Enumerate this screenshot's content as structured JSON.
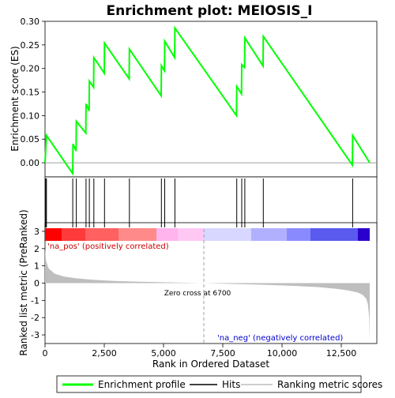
{
  "chart_data": {
    "type": "line",
    "title": "Enrichment plot: MEIOSIS_I",
    "es_panel": {
      "ylabel": "Enrichment score (ES)",
      "ylim": [
        -0.03,
        0.3
      ],
      "yticks": [
        0.0,
        0.05,
        0.1,
        0.15,
        0.2,
        0.25,
        0.3
      ],
      "ytick_labels": [
        "0.00",
        "0.05",
        "0.10",
        "0.15",
        "0.20",
        "0.25",
        "0.30"
      ],
      "series": [
        {
          "name": "Enrichment profile",
          "color": "#00ff00",
          "x": [
            0,
            60,
            1170,
            1180,
            1310,
            1320,
            1720,
            1730,
            1860,
            1870,
            2050,
            2060,
            2500,
            2510,
            3550,
            3560,
            4900,
            4910,
            5040,
            5050,
            5470,
            5480,
            8080,
            8090,
            8290,
            8300,
            8420,
            8430,
            9200,
            9210,
            12970,
            12980,
            13700
          ],
          "y": [
            0.0,
            0.058,
            -0.023,
            0.04,
            0.025,
            0.088,
            0.063,
            0.125,
            0.11,
            0.173,
            0.16,
            0.223,
            0.19,
            0.254,
            0.178,
            0.241,
            0.142,
            0.206,
            0.195,
            0.258,
            0.223,
            0.286,
            0.1,
            0.162,
            0.146,
            0.208,
            0.202,
            0.265,
            0.205,
            0.268,
            -0.005,
            0.058,
            0.0
          ]
        }
      ]
    },
    "hits_panel": {
      "hits": [
        30,
        60,
        1170,
        1320,
        1730,
        1870,
        2060,
        2510,
        3560,
        4910,
        5050,
        5480,
        8090,
        8300,
        8430,
        9210,
        12980
      ],
      "color_bar": [
        {
          "from": 0,
          "to": 700,
          "color": "#ff0000"
        },
        {
          "from": 700,
          "to": 1700,
          "color": "#ff3a3a"
        },
        {
          "from": 1700,
          "to": 3100,
          "color": "#ff6060"
        },
        {
          "from": 3100,
          "to": 4700,
          "color": "#ff8a8a"
        },
        {
          "from": 4700,
          "to": 5600,
          "color": "#ffb4ee"
        },
        {
          "from": 5600,
          "to": 6700,
          "color": "#ffc8f4"
        },
        {
          "from": 6700,
          "to": 8700,
          "color": "#d7d7ff"
        },
        {
          "from": 8700,
          "to": 10200,
          "color": "#b0b0ff"
        },
        {
          "from": 10200,
          "to": 11200,
          "color": "#8a8aff"
        },
        {
          "from": 11200,
          "to": 13200,
          "color": "#5a5aee"
        },
        {
          "from": 13200,
          "to": 13700,
          "color": "#2a00cc"
        }
      ]
    },
    "metric_panel": {
      "ylabel": "Ranked list metric (PreRanked)",
      "ylim": [
        -3.5,
        3.5
      ],
      "yticks": [
        3,
        2,
        1,
        0,
        -1,
        -2,
        -3
      ],
      "ytick_labels": [
        "3",
        "2",
        "1",
        "0",
        "-1",
        "-2",
        "-3"
      ],
      "series": [
        {
          "name": "Ranking metric scores",
          "color": "#bebebe",
          "x": [
            0,
            40,
            150,
            400,
            800,
            1300,
            2000,
            3000,
            4000,
            5000,
            6000,
            6700,
            7500,
            8500,
            9500,
            10500,
            11500,
            12300,
            12800,
            13200,
            13400,
            13550,
            13620,
            13680,
            13700
          ],
          "y": [
            2.0,
            1.3,
            0.85,
            0.55,
            0.38,
            0.28,
            0.19,
            0.12,
            0.08,
            0.05,
            0.02,
            0.0,
            -0.03,
            -0.07,
            -0.11,
            -0.16,
            -0.23,
            -0.33,
            -0.43,
            -0.55,
            -0.68,
            -0.9,
            -1.2,
            -2.0,
            -3.4
          ]
        }
      ],
      "zero_cross": 6700,
      "zero_cross_label": "Zero cross at 6700",
      "pos_label": "'na_pos' (positively correlated)",
      "neg_label": "'na_neg' (negatively correlated)"
    },
    "xlabel": "Rank in Ordered Dataset",
    "xlim": [
      0,
      14000
    ],
    "xticks": [
      0,
      2500,
      5000,
      7500,
      10000,
      12500
    ],
    "xtick_labels": [
      "0",
      "2,500",
      "5,000",
      "7,500",
      "10,000",
      "12,500"
    ],
    "legend": {
      "placement": "bottom",
      "entries": [
        {
          "label": "Enrichment profile",
          "color": "#00ff00"
        },
        {
          "label": "Hits",
          "color": "#000000"
        },
        {
          "label": "Ranking metric scores",
          "color": "#bebebe"
        }
      ]
    }
  }
}
